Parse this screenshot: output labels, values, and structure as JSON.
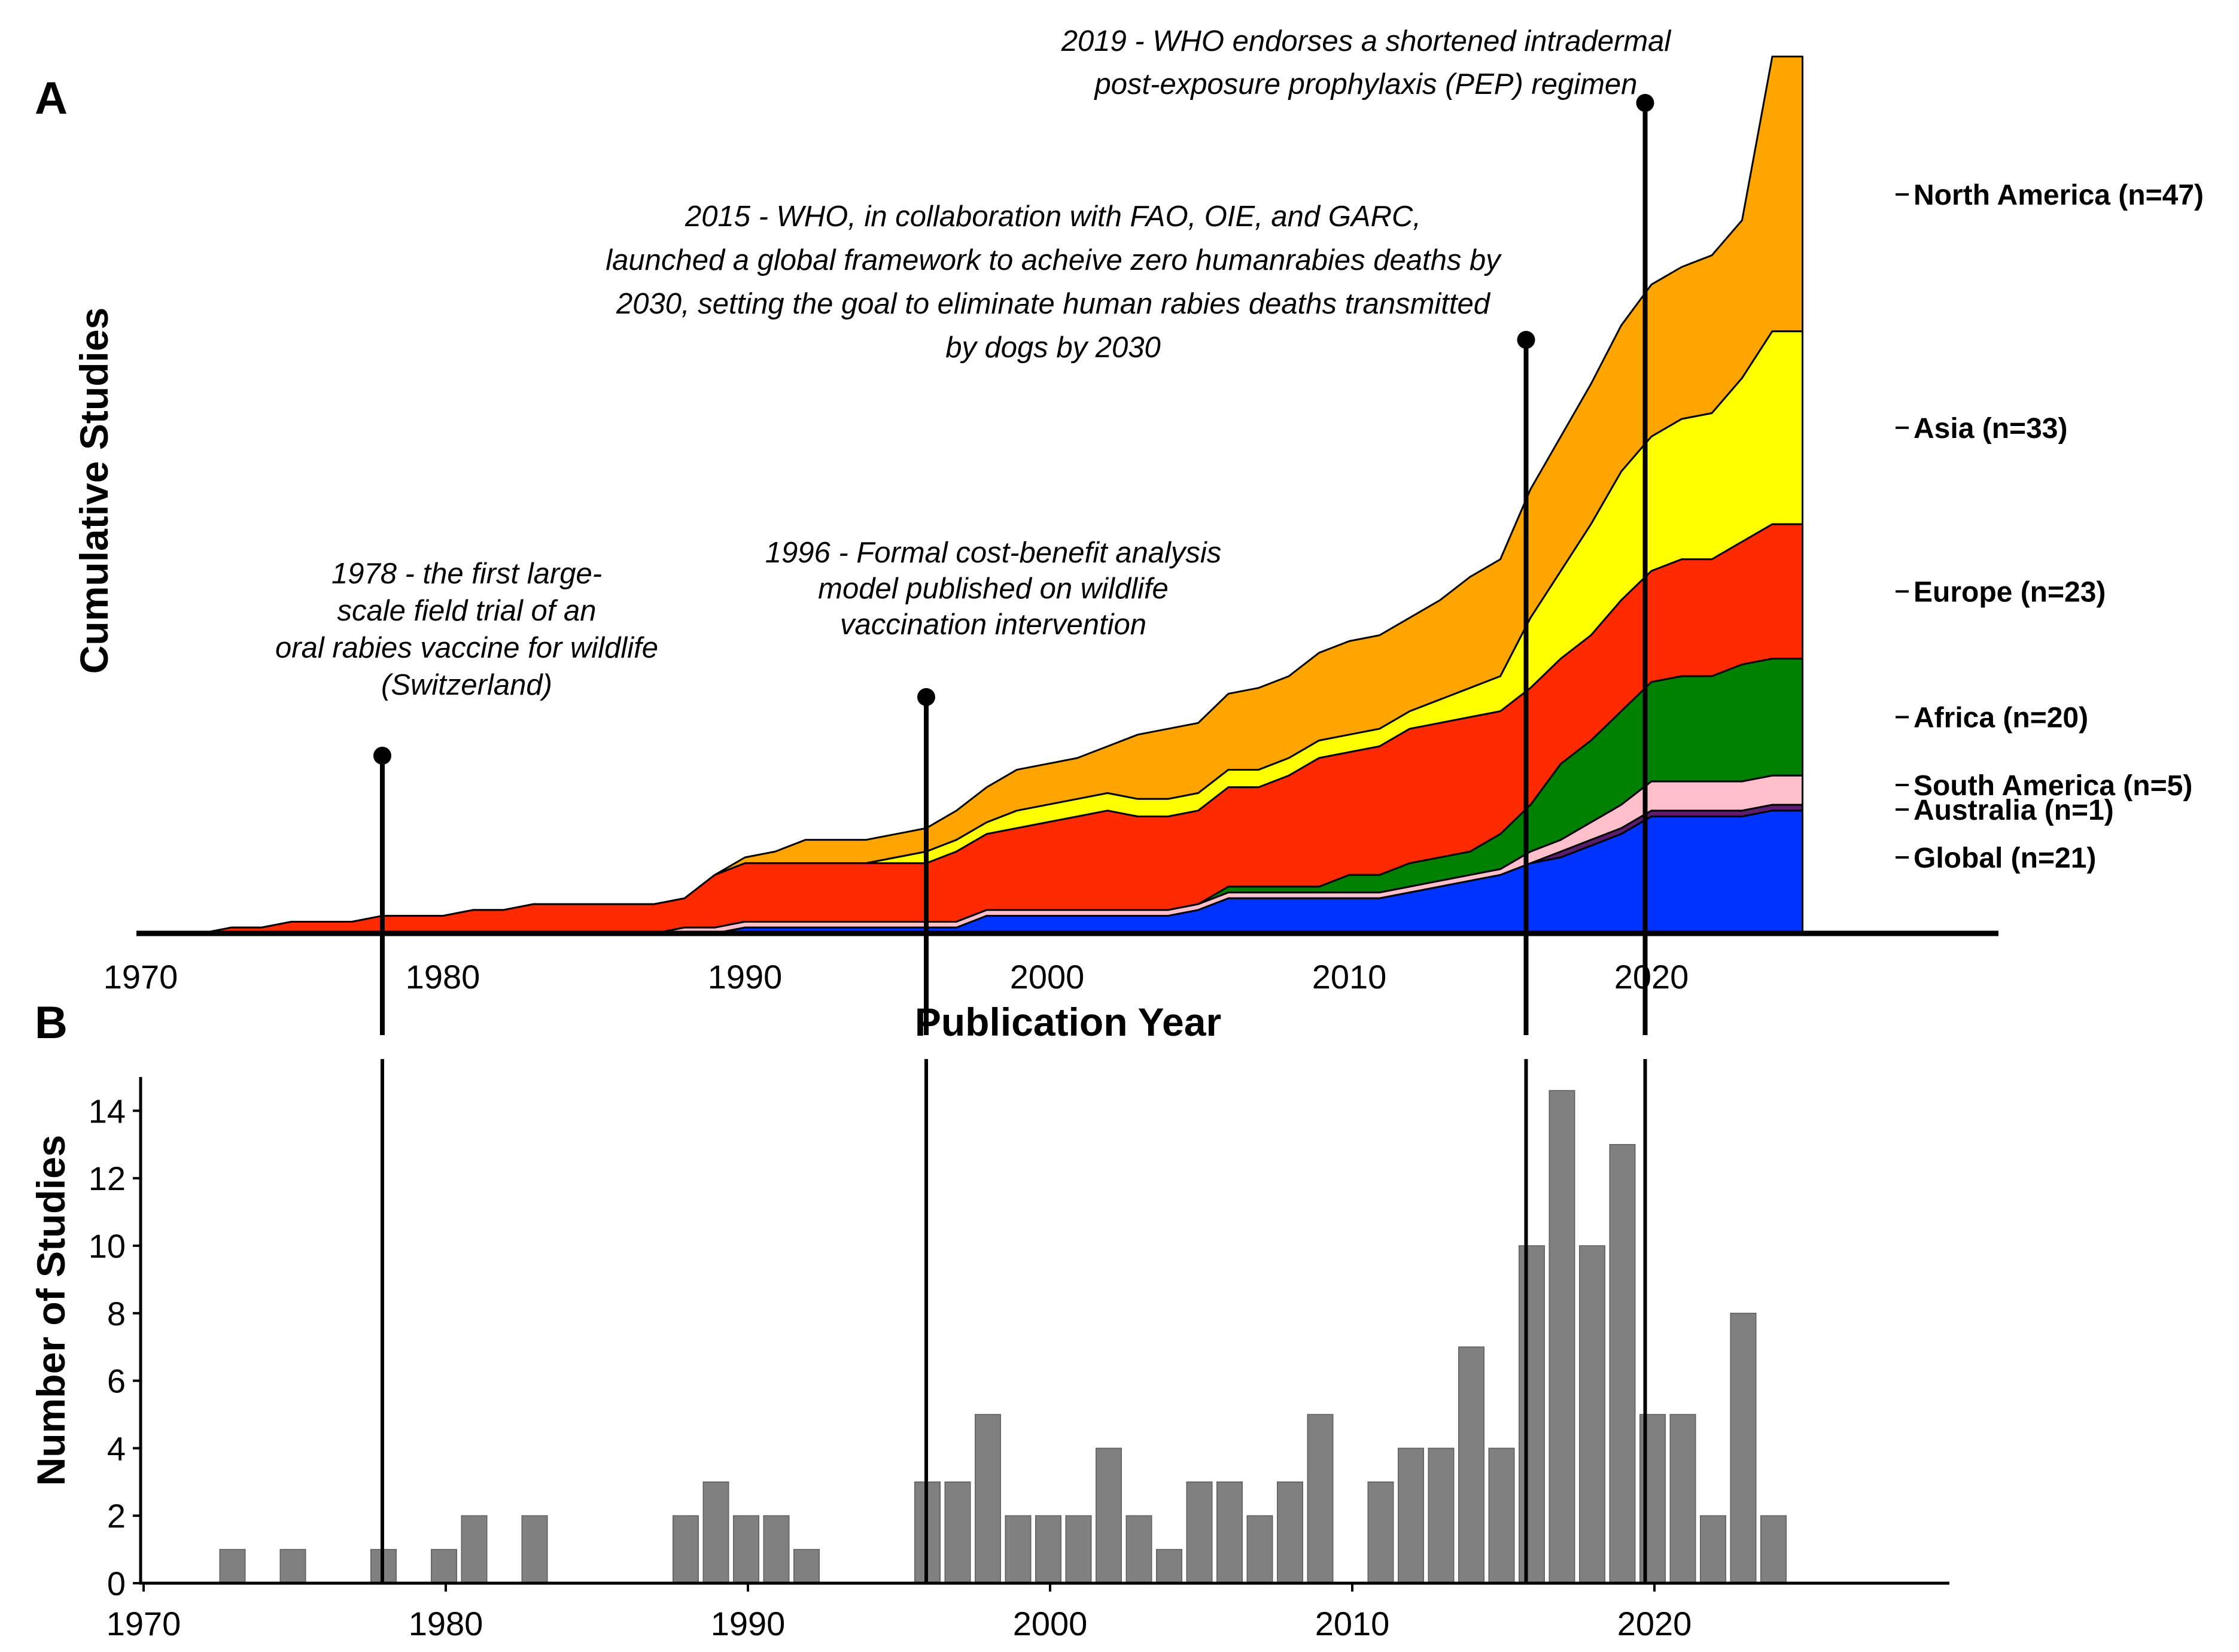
{
  "panel_a_letter": "A",
  "panel_b_letter": "B",
  "chart_data": [
    {
      "type": "area",
      "panel": "A",
      "ylabel": "Cumulative Studies",
      "xlabel": "Publication Year",
      "x_ticks": [
        "1970",
        "1980",
        "1990",
        "2000",
        "2010",
        "2020"
      ],
      "xlim": [
        1966,
        2028
      ],
      "ylim": [
        0,
        152
      ],
      "stacked": true,
      "x": [
        1972,
        1973,
        1974,
        1975,
        1976,
        1977,
        1978,
        1979,
        1980,
        1981,
        1982,
        1983,
        1984,
        1985,
        1986,
        1987,
        1988,
        1989,
        1990,
        1991,
        1992,
        1993,
        1994,
        1995,
        1996,
        1997,
        1998,
        1999,
        2000,
        2001,
        2002,
        2003,
        2004,
        2005,
        2006,
        2007,
        2008,
        2009,
        2010,
        2011,
        2012,
        2013,
        2014,
        2015,
        2016,
        2017,
        2018,
        2019,
        2020,
        2021,
        2022,
        2023,
        2024
      ],
      "series": [
        {
          "name": "Global (n=21)",
          "color": "#0033ff",
          "values": [
            0,
            0,
            0,
            0,
            0,
            0,
            0,
            0,
            0,
            0,
            0,
            0,
            0,
            0,
            0,
            0,
            0,
            0,
            1,
            1,
            1,
            1,
            1,
            1,
            1,
            1,
            3,
            3,
            3,
            3,
            3,
            3,
            3,
            4,
            6,
            6,
            6,
            6,
            6,
            6,
            7,
            8,
            9,
            10,
            12,
            13,
            15,
            17,
            20,
            20,
            20,
            20,
            21
          ]
        },
        {
          "name": "Australia (n=1)",
          "color": "#5b1e6e",
          "values": [
            0,
            0,
            0,
            0,
            0,
            0,
            0,
            0,
            0,
            0,
            0,
            0,
            0,
            0,
            0,
            0,
            0,
            0,
            0,
            0,
            0,
            0,
            0,
            0,
            0,
            0,
            0,
            0,
            0,
            0,
            0,
            0,
            0,
            0,
            0,
            0,
            0,
            0,
            0,
            0,
            0,
            0,
            0,
            0,
            0,
            1,
            1,
            1,
            1,
            1,
            1,
            1,
            1
          ]
        },
        {
          "name": "South America (n=5)",
          "color": "#ffc0cb",
          "values": [
            0,
            0,
            0,
            0,
            0,
            0,
            0,
            0,
            0,
            0,
            0,
            0,
            0,
            0,
            0,
            0,
            1,
            1,
            1,
            1,
            1,
            1,
            1,
            1,
            1,
            1,
            1,
            1,
            1,
            1,
            1,
            1,
            1,
            1,
            1,
            1,
            1,
            1,
            1,
            1,
            1,
            1,
            1,
            1,
            2,
            2,
            3,
            4,
            5,
            5,
            5,
            5,
            5
          ]
        },
        {
          "name": "Africa (n=20)",
          "color": "#008000",
          "values": [
            0,
            0,
            0,
            0,
            0,
            0,
            0,
            0,
            0,
            0,
            0,
            0,
            0,
            0,
            0,
            0,
            0,
            0,
            0,
            0,
            0,
            0,
            0,
            0,
            0,
            0,
            0,
            0,
            0,
            0,
            0,
            0,
            0,
            0,
            1,
            1,
            1,
            1,
            3,
            3,
            4,
            4,
            4,
            6,
            8,
            13,
            14,
            16,
            17,
            18,
            18,
            20,
            20
          ]
        },
        {
          "name": "Europe (n=23)",
          "color": "#ff2a00",
          "values": [
            0,
            1,
            1,
            2,
            2,
            2,
            3,
            3,
            3,
            4,
            4,
            5,
            5,
            5,
            5,
            5,
            5,
            9,
            10,
            10,
            10,
            10,
            10,
            10,
            10,
            12,
            13,
            14,
            15,
            16,
            17,
            16,
            16,
            16,
            17,
            17,
            19,
            22,
            21,
            22,
            23,
            23,
            23,
            21,
            20,
            18,
            18,
            19,
            19,
            20,
            20,
            21,
            23
          ]
        },
        {
          "name": "Asia (n=33)",
          "color": "#ffff00",
          "values": [
            0,
            0,
            0,
            0,
            0,
            0,
            0,
            0,
            0,
            0,
            0,
            0,
            0,
            0,
            0,
            0,
            0,
            0,
            0,
            0,
            0,
            0,
            0,
            1,
            2,
            2,
            2,
            3,
            3,
            3,
            3,
            3,
            3,
            3,
            3,
            3,
            3,
            3,
            3,
            3,
            3,
            4,
            5,
            6,
            12,
            15,
            19,
            22,
            23,
            24,
            25,
            28,
            33
          ]
        },
        {
          "name": "North America (n=47)",
          "color": "#ffa500",
          "values": [
            0,
            0,
            0,
            0,
            0,
            0,
            0,
            0,
            0,
            0,
            0,
            0,
            0,
            0,
            0,
            0,
            0,
            0,
            1,
            2,
            4,
            4,
            4,
            4,
            4,
            5,
            6,
            7,
            7,
            7,
            8,
            11,
            12,
            12,
            13,
            14,
            14,
            15,
            16,
            16,
            16,
            17,
            19,
            20,
            22,
            23,
            24,
            25,
            26,
            26,
            27,
            27,
            47
          ]
        }
      ],
      "annotations": [
        {
          "year": 1978,
          "lines": [
            "1978 - the first large-",
            "scale field trial of an",
            "oral rabies vaccine for wildlife",
            "(Switzerland)"
          ]
        },
        {
          "year": 1996,
          "lines": [
            "1996 - Formal cost-benefit analysis",
            "model published on wildlife",
            "vaccination intervention"
          ]
        },
        {
          "year": 2015,
          "lines": [
            "2015 - WHO, in collaboration with FAO, OIE, and GARC,",
            "launched a global framework to acheive zero humanrabies deaths by",
            "2030, setting the goal to eliminate human rabies deaths transmitted",
            "by dogs by 2030"
          ]
        },
        {
          "year": 2019,
          "lines": [
            "2019 - WHO endorses a shortened intradermal",
            "post-exposure prophylaxis (PEP) regimen"
          ]
        }
      ]
    },
    {
      "type": "bar",
      "panel": "B",
      "ylabel": "Number of Studies",
      "x_ticks": [
        "1970",
        "1980",
        "1990",
        "2000",
        "2010",
        "2020"
      ],
      "y_ticks": [
        "0",
        "2",
        "4",
        "6",
        "8",
        "10",
        "12",
        "14"
      ],
      "xlim": [
        1966,
        2028
      ],
      "ylim": [
        0,
        15
      ],
      "categories": [
        1973,
        1975,
        1978,
        1980,
        1981,
        1983,
        1988,
        1989,
        1990,
        1991,
        1992,
        1996,
        1997,
        1998,
        1999,
        2000,
        2001,
        2002,
        2003,
        2004,
        2005,
        2006,
        2007,
        2008,
        2009,
        2011,
        2012,
        2013,
        2014,
        2015,
        2016,
        2017,
        2018,
        2019,
        2020,
        2021,
        2022,
        2023,
        2024
      ],
      "values": [
        1,
        1,
        1,
        1,
        2,
        2,
        2,
        3,
        2,
        2,
        1,
        3,
        3,
        5,
        2,
        2,
        2,
        4,
        2,
        1,
        3,
        3,
        2,
        3,
        5,
        3,
        4,
        4,
        7,
        4,
        10,
        14.6,
        10,
        13,
        5,
        5,
        2,
        8,
        2
      ],
      "bar_color": "#808080"
    }
  ]
}
